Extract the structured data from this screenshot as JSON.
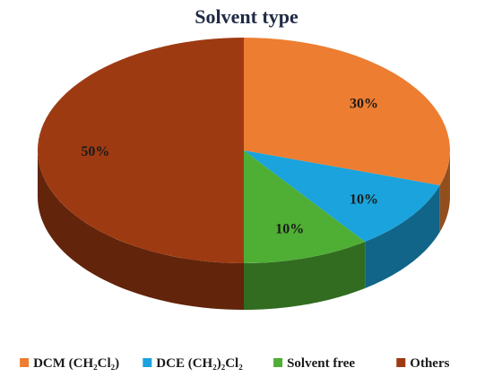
{
  "chart_data": {
    "type": "pie",
    "title": "Solvent type",
    "legend_position": "bottom",
    "slices": [
      {
        "label": "DCM (CH₂Cl₂)",
        "value": 30,
        "value_label": "30%",
        "color": "#ed7d31"
      },
      {
        "label": "DCE (CH₂)₂Cl₂",
        "value": 10,
        "value_label": "10%",
        "color": "#1aa3dc"
      },
      {
        "label": "Solvent free",
        "value": 10,
        "value_label": "10%",
        "color": "#4fae34"
      },
      {
        "label": "Others",
        "value": 50,
        "value_label": "50%",
        "color": "#9e3a12"
      }
    ]
  }
}
